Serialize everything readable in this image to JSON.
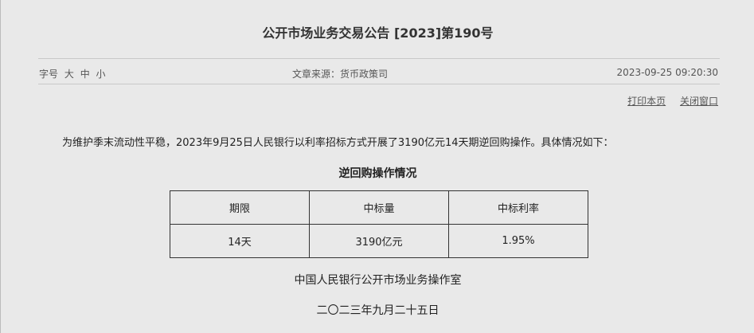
{
  "title": "公开市场业务交易公告 [2023]第190号",
  "meta": {
    "font_label": "字号",
    "font_sizes": [
      "大",
      "中",
      "小"
    ],
    "source": "文章来源：货币政策司",
    "datetime": "2023-09-25 09:20:30"
  },
  "links": {
    "print": "打印本页",
    "close": "关闭窗口"
  },
  "body": {
    "paragraph": "为维护季末流动性平稳，2023年9月25日人民银行以利率招标方式开展了3190亿元14天期逆回购操作。具体情况如下：",
    "table_caption": "逆回购操作情况",
    "headers": [
      "期限",
      "中标量",
      "中标利率"
    ],
    "rows": [
      [
        "14天",
        "3190亿元",
        "1.95%"
      ]
    ],
    "signature": "中国人民银行公开市场业务操作室",
    "date": "二〇二三年九月二十五日"
  }
}
